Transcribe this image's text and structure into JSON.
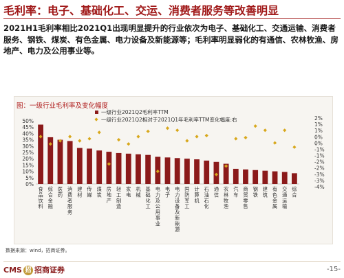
{
  "page": {
    "title": "毛利率：电子、基础化工、交运、消费者服务等改善明显",
    "body": "2021H1毛利率相比2021Q1出现明显提升的行业依次为电子、基础化工、交通运输、消费者服务、钢铁、煤炭、有色金属、电力设备及新能源等；毛利率明显弱化的有通信、农林牧渔、房地产、电力及公用事业等。",
    "source": "数据来源：wind，招商证券。",
    "page_number": "-15-",
    "logo_text": "CMS",
    "logo_badge": "招",
    "logo_name": "招商证券"
  },
  "chart_data": {
    "type": "bar",
    "title": "图：一级行业毛利率及变化幅度",
    "categories": [
      "食品饮料",
      "综合金融",
      "医药",
      "消费者服务",
      "建材",
      "传媒",
      "煤炭",
      "房地产",
      "轻工制造",
      "家电",
      "机械",
      "基础化工",
      "电力及公用事业",
      "电子",
      "电力设备及新能源",
      "国防军工",
      "计算机",
      "石油石化",
      "通信",
      "农林牧渔",
      "汽车",
      "商贸零售",
      "钢铁",
      "建筑",
      "有色金属",
      "交通运输",
      "综合"
    ],
    "series": [
      {
        "name": "一级行业2021Q2毛利率TTM",
        "axis": "left",
        "color": "#8b1a1a",
        "values": [
          47,
          37,
          35,
          34,
          28.5,
          28,
          26.5,
          25.5,
          24.5,
          24,
          23.5,
          23,
          21.5,
          21,
          20.5,
          20,
          19.5,
          18.5,
          17.5,
          16,
          12,
          11.5,
          11,
          10.5,
          10,
          9.5,
          8.5
        ]
      },
      {
        "name": "一级行业2021Q2相对于2021Q1年毛利率TTM变化幅度:右",
        "axis": "right",
        "color": "#d8a81c",
        "values": [
          0.5,
          -0.2,
          0.1,
          0.5,
          0.1,
          0.3,
          0.9,
          -2.1,
          0.2,
          -0.2,
          0.5,
          1.0,
          -2.8,
          1.3,
          1.1,
          0.1,
          0.5,
          0.6,
          -3.1,
          -2.3,
          0.3,
          0.4,
          1.5,
          1.1,
          -0.1,
          1.1,
          -0.5
        ]
      }
    ],
    "ylim_left": [
      0,
      50
    ],
    "yticks_left": [
      "50%",
      "45%",
      "40%",
      "35%",
      "30%",
      "25%",
      "20%",
      "15%",
      "10%",
      "5%",
      "0%"
    ],
    "ylim_right": [
      -4,
      2
    ],
    "yticks_right": [
      "2%",
      "1%",
      "1%",
      "0%",
      "0%",
      "-1%",
      "-1%",
      "-2%",
      "-2%",
      "-3%",
      "-3%",
      "-4%"
    ],
    "legend_position": "top"
  }
}
